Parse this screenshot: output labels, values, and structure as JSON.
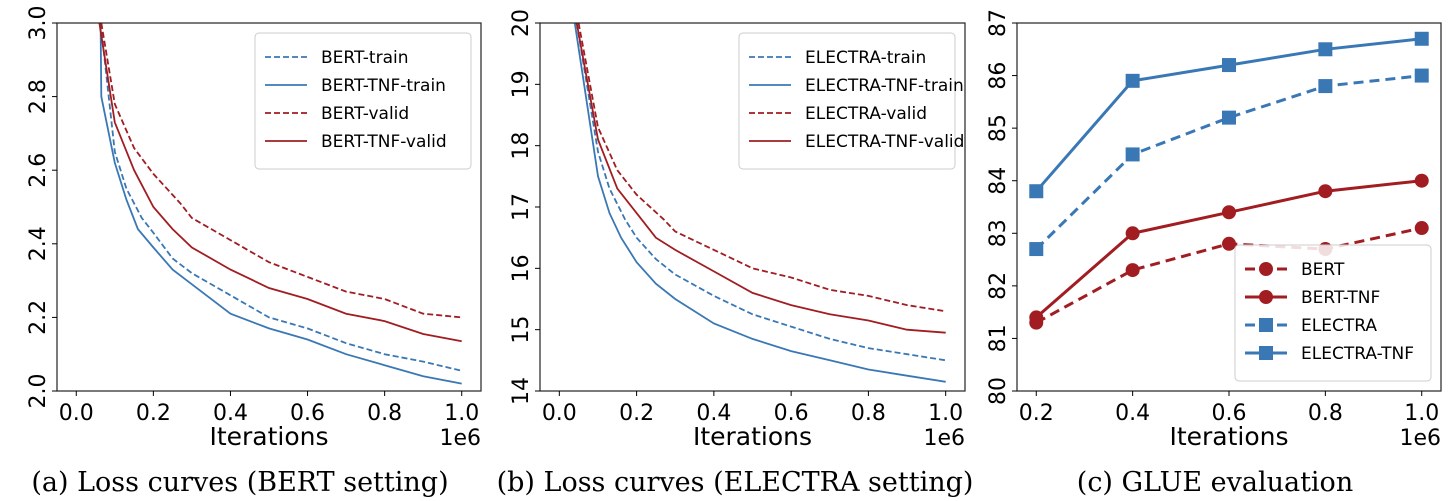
{
  "colors": {
    "blue": "#3a78b5",
    "red": "#a11d21"
  },
  "chart_data": [
    {
      "type": "line",
      "caption": "(a) Loss curves (BERT setting)",
      "xlabel": "Iterations",
      "x_offset_label": "1e6",
      "ylabel": "",
      "xlim": [
        -0.05,
        1.05
      ],
      "ylim": [
        2.0,
        3.0
      ],
      "xticks": [
        "0.0",
        "0.2",
        "0.4",
        "0.6",
        "0.8",
        "1.0"
      ],
      "yticks": [
        "2.0",
        "2.2",
        "2.4",
        "2.6",
        "2.8",
        "3.0"
      ],
      "legend_position": "top-right",
      "grid": false,
      "series": [
        {
          "name": "BERT-train",
          "color": "blue",
          "dash": true,
          "x": [
            0.063,
            0.1,
            0.13,
            0.17,
            0.2,
            0.25,
            0.3,
            0.4,
            0.5,
            0.6,
            0.7,
            0.8,
            0.9,
            1.0
          ],
          "y": [
            3.0,
            2.65,
            2.55,
            2.47,
            2.43,
            2.36,
            2.32,
            2.26,
            2.2,
            2.17,
            2.13,
            2.1,
            2.08,
            2.055
          ]
        },
        {
          "name": "BERT-TNF-train",
          "color": "blue",
          "dash": false,
          "x": [
            0.063,
            0.065,
            0.1,
            0.13,
            0.16,
            0.2,
            0.25,
            0.3,
            0.4,
            0.5,
            0.6,
            0.7,
            0.8,
            0.9,
            1.0
          ],
          "y": [
            3.0,
            2.8,
            2.62,
            2.52,
            2.44,
            2.39,
            2.33,
            2.29,
            2.21,
            2.17,
            2.14,
            2.1,
            2.07,
            2.04,
            2.02
          ]
        },
        {
          "name": "BERT-valid",
          "color": "red",
          "dash": true,
          "x": [
            0.065,
            0.1,
            0.15,
            0.2,
            0.27,
            0.3,
            0.4,
            0.5,
            0.6,
            0.7,
            0.8,
            0.9,
            1.0
          ],
          "y": [
            3.0,
            2.78,
            2.66,
            2.59,
            2.51,
            2.47,
            2.41,
            2.35,
            2.31,
            2.27,
            2.25,
            2.21,
            2.2
          ]
        },
        {
          "name": "BERT-TNF-valid",
          "color": "red",
          "dash": false,
          "x": [
            0.06,
            0.1,
            0.15,
            0.2,
            0.25,
            0.3,
            0.4,
            0.5,
            0.6,
            0.7,
            0.8,
            0.9,
            1.0
          ],
          "y": [
            3.0,
            2.73,
            2.6,
            2.5,
            2.44,
            2.39,
            2.33,
            2.28,
            2.25,
            2.21,
            2.19,
            2.155,
            2.135
          ]
        }
      ]
    },
    {
      "type": "line",
      "caption": "(b) Loss curves (ELECTRA setting)",
      "xlabel": "Iterations",
      "x_offset_label": "1e6",
      "ylabel": "",
      "xlim": [
        -0.05,
        1.05
      ],
      "ylim": [
        14,
        20
      ],
      "xticks": [
        "0.0",
        "0.2",
        "0.4",
        "0.6",
        "0.8",
        "1.0"
      ],
      "yticks": [
        "14",
        "15",
        "16",
        "17",
        "18",
        "19",
        "20"
      ],
      "legend_position": "top-right",
      "grid": false,
      "series": [
        {
          "name": "ELECTRA-train",
          "color": "blue",
          "dash": true,
          "x": [
            0.045,
            0.1,
            0.13,
            0.17,
            0.2,
            0.25,
            0.3,
            0.4,
            0.5,
            0.6,
            0.7,
            0.8,
            0.9,
            1.0
          ],
          "y": [
            20,
            17.9,
            17.3,
            16.8,
            16.5,
            16.15,
            15.9,
            15.55,
            15.25,
            15.05,
            14.85,
            14.7,
            14.6,
            14.5
          ]
        },
        {
          "name": "ELECTRA-TNF-train",
          "color": "blue",
          "dash": false,
          "x": [
            0.04,
            0.1,
            0.13,
            0.16,
            0.2,
            0.25,
            0.3,
            0.4,
            0.5,
            0.6,
            0.7,
            0.8,
            0.9,
            1.0
          ],
          "y": [
            20,
            17.5,
            16.9,
            16.5,
            16.1,
            15.75,
            15.5,
            15.1,
            14.85,
            14.65,
            14.5,
            14.35,
            14.25,
            14.15
          ]
        },
        {
          "name": "ELECTRA-valid",
          "color": "red",
          "dash": true,
          "x": [
            0.05,
            0.1,
            0.15,
            0.2,
            0.27,
            0.3,
            0.4,
            0.5,
            0.6,
            0.7,
            0.8,
            0.9,
            1.0
          ],
          "y": [
            20,
            18.3,
            17.6,
            17.2,
            16.8,
            16.6,
            16.3,
            16.0,
            15.85,
            15.65,
            15.55,
            15.4,
            15.3
          ]
        },
        {
          "name": "ELECTRA-TNF-valid",
          "color": "red",
          "dash": false,
          "x": [
            0.045,
            0.1,
            0.15,
            0.2,
            0.25,
            0.3,
            0.4,
            0.5,
            0.6,
            0.7,
            0.8,
            0.9,
            1.0
          ],
          "y": [
            20,
            18.1,
            17.3,
            16.9,
            16.5,
            16.3,
            15.95,
            15.6,
            15.4,
            15.25,
            15.15,
            15.0,
            14.95
          ]
        }
      ]
    },
    {
      "type": "line",
      "caption": "(c) GLUE evaluation",
      "xlabel": "Iterations",
      "x_offset_label": "1e6",
      "ylabel": "",
      "xlim": [
        0.16,
        1.04
      ],
      "ylim": [
        80,
        87
      ],
      "xticks": [
        "0.2",
        "0.4",
        "0.6",
        "0.8",
        "1.0"
      ],
      "yticks": [
        "80",
        "81",
        "82",
        "83",
        "84",
        "85",
        "86",
        "87"
      ],
      "legend_position": "bottom-right",
      "grid": false,
      "series": [
        {
          "name": "BERT",
          "color": "red",
          "dash": true,
          "marker": "circle",
          "x": [
            0.2,
            0.4,
            0.6,
            0.8,
            1.0
          ],
          "y": [
            81.3,
            82.3,
            82.8,
            82.7,
            83.1
          ]
        },
        {
          "name": "BERT-TNF",
          "color": "red",
          "dash": false,
          "marker": "circle",
          "x": [
            0.2,
            0.4,
            0.6,
            0.8,
            1.0
          ],
          "y": [
            81.4,
            83.0,
            83.4,
            83.8,
            84.0
          ]
        },
        {
          "name": "ELECTRA",
          "color": "blue",
          "dash": true,
          "marker": "square",
          "x": [
            0.2,
            0.4,
            0.6,
            0.8,
            1.0
          ],
          "y": [
            82.7,
            84.5,
            85.2,
            85.8,
            86.0
          ]
        },
        {
          "name": "ELECTRA-TNF",
          "color": "blue",
          "dash": false,
          "marker": "square",
          "x": [
            0.2,
            0.4,
            0.6,
            0.8,
            1.0
          ],
          "y": [
            83.8,
            85.9,
            86.2,
            86.5,
            86.7
          ]
        }
      ]
    }
  ]
}
